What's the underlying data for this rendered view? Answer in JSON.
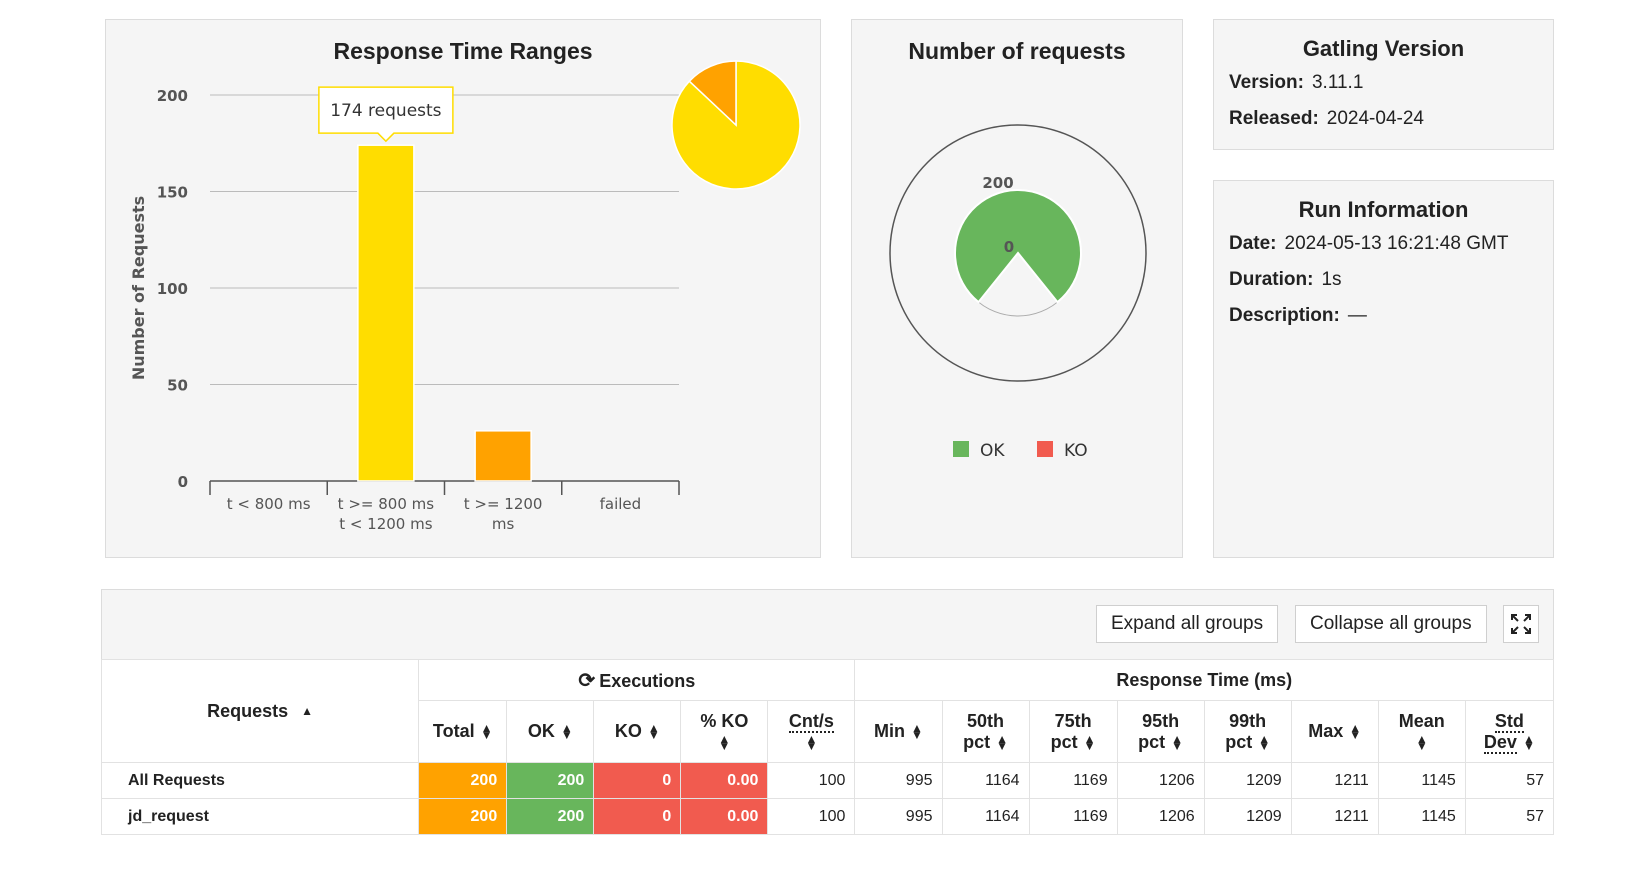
{
  "response_time_ranges": {
    "title": "Response Time Ranges",
    "tooltip": "174 requests",
    "chart_data": {
      "type": "bar",
      "categories": [
        [
          "t < 800 ms"
        ],
        [
          "t >= 800 ms",
          "t < 1200 ms"
        ],
        [
          "t >= 1200",
          "ms"
        ],
        [
          "failed"
        ]
      ],
      "values": [
        0,
        174,
        26,
        0
      ],
      "colors": [
        "#68b65c",
        "#ffdd00",
        "#ffa200",
        "#f15b4f"
      ],
      "ylabel": "Number of Requests",
      "ylim": [
        0,
        200
      ],
      "yticks": [
        "200",
        "150",
        "100",
        "50",
        "0"
      ],
      "grid": true,
      "pie": {
        "values": [
          174,
          26
        ],
        "colors": [
          "#ffdd00",
          "#ffa200"
        ]
      }
    }
  },
  "number_of_requests": {
    "title": "Number of requests",
    "outer_label": "200",
    "inner_label": "0",
    "legend": [
      {
        "label": "OK",
        "color": "#68b65c"
      },
      {
        "label": "KO",
        "color": "#f15b4f"
      }
    ]
  },
  "gatling_version": {
    "title": "Gatling Version",
    "rows": [
      {
        "label": "Version:",
        "value": "3.11.1"
      },
      {
        "label": "Released:",
        "value": "2024-04-24"
      }
    ]
  },
  "run_information": {
    "title": "Run Information",
    "rows": [
      {
        "label": "Date:",
        "value": "2024-05-13 16:21:48 GMT"
      },
      {
        "label": "Duration:",
        "value": "1s"
      },
      {
        "label": "Description:",
        "value": "—"
      }
    ]
  },
  "controls": {
    "expand_label": "Expand all groups",
    "collapse_label": "Collapse all groups",
    "fullscreen_icon": "expand-icon"
  },
  "stats_table": {
    "requests_header": "Requests",
    "executions_header": "Executions",
    "response_time_header": "Response Time (ms)",
    "columns": {
      "total": "Total",
      "ok": "OK",
      "ko": "KO",
      "pct_ko": "% KO",
      "cnt": "Cnt/s",
      "min": "Min",
      "p50a": "50th",
      "p50b": "pct",
      "p75a": "75th",
      "p75b": "pct",
      "p95a": "95th",
      "p95b": "pct",
      "p99a": "99th",
      "p99b": "pct",
      "max": "Max",
      "mean": "Mean",
      "stda": "Std",
      "stdb": "Dev"
    },
    "rows": [
      {
        "name": "All Requests",
        "total": "200",
        "ok": "200",
        "ko": "0",
        "pct_ko": "0.00",
        "cnt": "100",
        "min": "995",
        "p50": "1164",
        "p75": "1169",
        "p95": "1206",
        "p99": "1209",
        "max": "1211",
        "mean": "1145",
        "std": "57"
      },
      {
        "name": "jd_request",
        "total": "200",
        "ok": "200",
        "ko": "0",
        "pct_ko": "0.00",
        "cnt": "100",
        "min": "995",
        "p50": "1164",
        "p75": "1169",
        "p95": "1206",
        "p99": "1209",
        "max": "1211",
        "mean": "1145",
        "std": "57"
      }
    ]
  }
}
